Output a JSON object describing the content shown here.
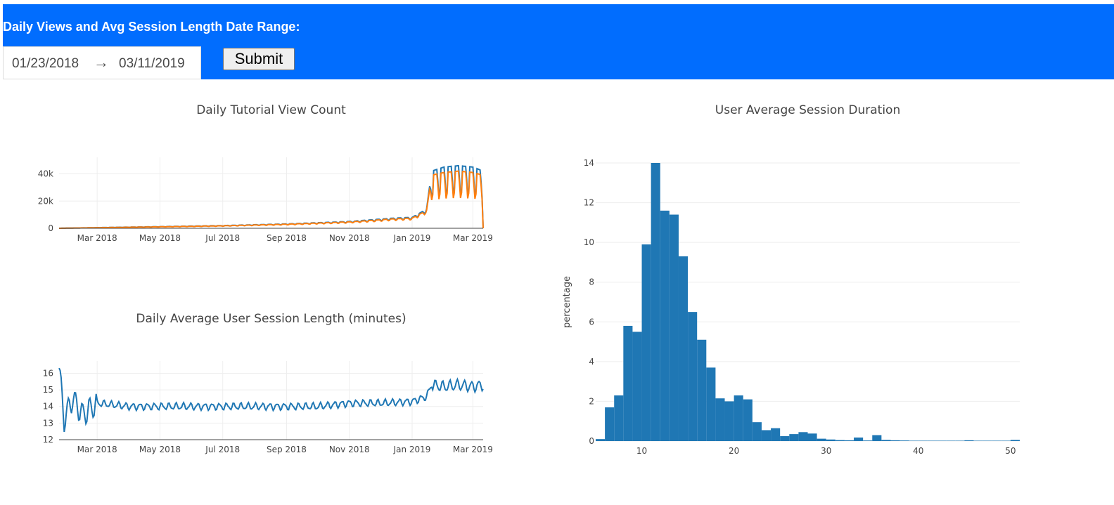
{
  "header": {
    "title": "Daily Views and Avg Session Length Date Range:",
    "start_date": "01/23/2018",
    "arrow": "→",
    "end_date": "03/11/2019",
    "submit_label": "Submit",
    "background": "#016dfe"
  },
  "chart_data": [
    {
      "type": "line",
      "title": "Daily Tutorial View Count",
      "xlabel": "",
      "ylabel": "",
      "x_range": [
        "2018-01-23",
        "2019-03-11"
      ],
      "x_ticks": [
        "Mar 2018",
        "May 2018",
        "Jul 2018",
        "Sep 2018",
        "Nov 2018",
        "Jan 2019",
        "Mar 2019"
      ],
      "y_ticks": [
        "0",
        "20k",
        "40k"
      ],
      "ylim": [
        0,
        48000
      ],
      "colors": [
        "#1f77b4",
        "#ff7f0e"
      ],
      "series": [
        {
          "x": [
            "2018-01-23",
            "2018-03-01",
            "2018-05-01",
            "2018-07-01",
            "2018-09-01",
            "2018-11-01",
            "2018-12-15",
            "2019-01-01",
            "2019-01-15",
            "2019-01-20",
            "2019-02-01",
            "2019-02-15",
            "2019-03-01",
            "2019-03-11"
          ],
          "values": [
            0,
            500,
            1200,
            2000,
            3200,
            5000,
            7500,
            8000,
            14000,
            42000,
            45000,
            46000,
            45000,
            42000
          ]
        },
        {
          "x": [
            "2018-01-23",
            "2018-03-01",
            "2018-05-01",
            "2018-07-01",
            "2018-09-01",
            "2018-11-01",
            "2018-12-15",
            "2019-01-01",
            "2019-01-15",
            "2019-01-20",
            "2019-02-01",
            "2019-02-15",
            "2019-03-01",
            "2019-03-11"
          ],
          "values": [
            0,
            450,
            1100,
            1850,
            3000,
            4700,
            7000,
            7500,
            13000,
            39000,
            41000,
            42000,
            41000,
            39000
          ]
        }
      ]
    },
    {
      "type": "line",
      "title": "Daily Average User Session Length (minutes)",
      "xlabel": "",
      "ylabel": "",
      "x_range": [
        "2018-01-23",
        "2019-03-11"
      ],
      "x_ticks": [
        "Mar 2018",
        "May 2018",
        "Jul 2018",
        "Sep 2018",
        "Nov 2018",
        "Jan 2019",
        "Mar 2019"
      ],
      "y_ticks": [
        "12",
        "13",
        "14",
        "15",
        "16"
      ],
      "ylim": [
        12,
        16.4
      ],
      "colors": [
        "#1f77b4"
      ],
      "series": [
        {
          "x": [
            "2018-01-23",
            "2018-01-28",
            "2018-02-05",
            "2018-02-15",
            "2018-03-01",
            "2018-04-01",
            "2018-05-01",
            "2018-06-01",
            "2018-07-01",
            "2018-08-01",
            "2018-09-01",
            "2018-10-01",
            "2018-11-01",
            "2018-12-01",
            "2019-01-01",
            "2019-01-15",
            "2019-01-20",
            "2019-02-01",
            "2019-02-15",
            "2019-03-01",
            "2019-03-11"
          ],
          "values": [
            16.3,
            13.2,
            14.5,
            13.5,
            14.2,
            14.0,
            14.0,
            14.0,
            14.0,
            14.0,
            14.0,
            14.0,
            14.2,
            14.2,
            14.3,
            14.6,
            15.3,
            15.2,
            15.3,
            15.2,
            15.3
          ]
        }
      ]
    },
    {
      "type": "bar",
      "title": "User Average Session Duration",
      "xlabel": "",
      "ylabel": "percentage",
      "x_ticks": [
        "10",
        "20",
        "30",
        "40",
        "50"
      ],
      "y_ticks": [
        "0",
        "2",
        "4",
        "6",
        "8",
        "10",
        "12",
        "14"
      ],
      "xlim": [
        5,
        51
      ],
      "ylim": [
        0,
        14
      ],
      "bin_width": 1,
      "bin_starts": [
        5,
        6,
        7,
        8,
        9,
        10,
        11,
        12,
        13,
        14,
        15,
        16,
        17,
        18,
        19,
        20,
        21,
        22,
        23,
        24,
        25,
        26,
        27,
        28,
        29,
        30,
        31,
        32,
        33,
        34,
        35,
        36,
        37,
        38,
        39,
        40,
        41,
        42,
        43,
        44,
        45,
        46,
        47,
        48,
        49,
        50
      ],
      "values": [
        0.1,
        1.7,
        2.3,
        5.8,
        5.5,
        9.9,
        14.0,
        11.6,
        11.4,
        9.3,
        6.5,
        5.1,
        3.7,
        2.15,
        2.0,
        2.3,
        2.1,
        0.95,
        0.55,
        0.65,
        0.25,
        0.35,
        0.45,
        0.38,
        0.12,
        0.08,
        0.05,
        0.04,
        0.18,
        0.03,
        0.3,
        0.06,
        0.04,
        0.03,
        0.02,
        0.02,
        0.02,
        0.02,
        0.02,
        0.02,
        0.04,
        0.02,
        0.02,
        0.02,
        0.02,
        0.06
      ],
      "color": "#1f77b4"
    }
  ]
}
